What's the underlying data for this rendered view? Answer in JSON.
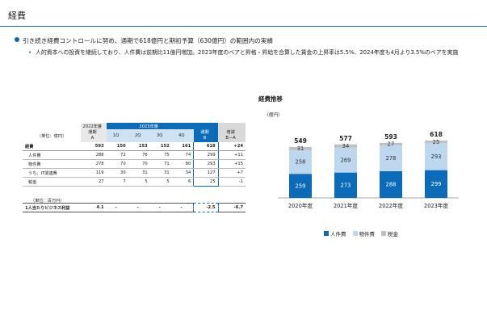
{
  "page": {
    "title": "経費",
    "bullet": "引き続き経費コントロールに努め、通期で618億円と期初予算（630億円）の範囲内の実績",
    "sub_bullet": "人的資本への投資を継続しており、人件費は前期比11億円増加。2023年度のベアと昇格・昇給を合算した賃金の上昇率は5.5%、2024年度も4月より3.5%のベアを実施"
  },
  "colors": {
    "accent": "#0b6bb8",
    "personnel": "#0b6bb8",
    "property": "#bdd7ee",
    "tax": "#bfbfbf"
  },
  "table": {
    "unit_label": "（単位：億円）",
    "header_2022": "2022年度",
    "header_2023": "2023年度",
    "col_a": "通期\nA",
    "quarters": [
      "1Q",
      "2Q",
      "3Q",
      "4Q"
    ],
    "col_b": "通期\nB",
    "col_diff": "増減\nB－A",
    "rows": [
      {
        "label": "経費",
        "a": "593",
        "q": [
          "150",
          "153",
          "152",
          "161"
        ],
        "b": "618",
        "diff": "+24"
      },
      {
        "label": "人件費",
        "a": "288",
        "q": [
          "72",
          "76",
          "75",
          "74"
        ],
        "b": "299",
        "diff": "+11"
      },
      {
        "label": "物件費",
        "a": "278",
        "q": [
          "70",
          "70",
          "71",
          "80"
        ],
        "b": "293",
        "diff": "+15"
      },
      {
        "label": "うち、IT関連費",
        "a": "119",
        "q": [
          "30",
          "31",
          "31",
          "34"
        ],
        "b": "127",
        "diff": "+7"
      },
      {
        "label": "税金",
        "a": "27",
        "q": [
          "7",
          "5",
          "5",
          "6"
        ],
        "b": "25",
        "diff": "-1"
      }
    ],
    "unit_label2": "（単位：百万円）",
    "row2": {
      "label": "1人当たりビジネス利益",
      "a": "4.1",
      "q": [
        "-",
        "-",
        "-",
        "-"
      ],
      "b": "-2.5",
      "diff": "-6.7"
    }
  },
  "chart_data": {
    "type": "bar",
    "title": "経費推移",
    "ylabel": "（億円）",
    "categories": [
      "2020年度",
      "2021年度",
      "2022年度",
      "2023年度"
    ],
    "series": [
      {
        "name": "人件費",
        "values": [
          259,
          273,
          288,
          299
        ]
      },
      {
        "name": "物件費",
        "values": [
          258,
          269,
          278,
          293
        ]
      },
      {
        "name": "税金",
        "values": [
          31,
          34,
          27,
          25
        ]
      }
    ],
    "totals": [
      "549",
      "577",
      "593",
      "618"
    ],
    "stacked": true,
    "legend_position": "bottom",
    "grid": false
  }
}
